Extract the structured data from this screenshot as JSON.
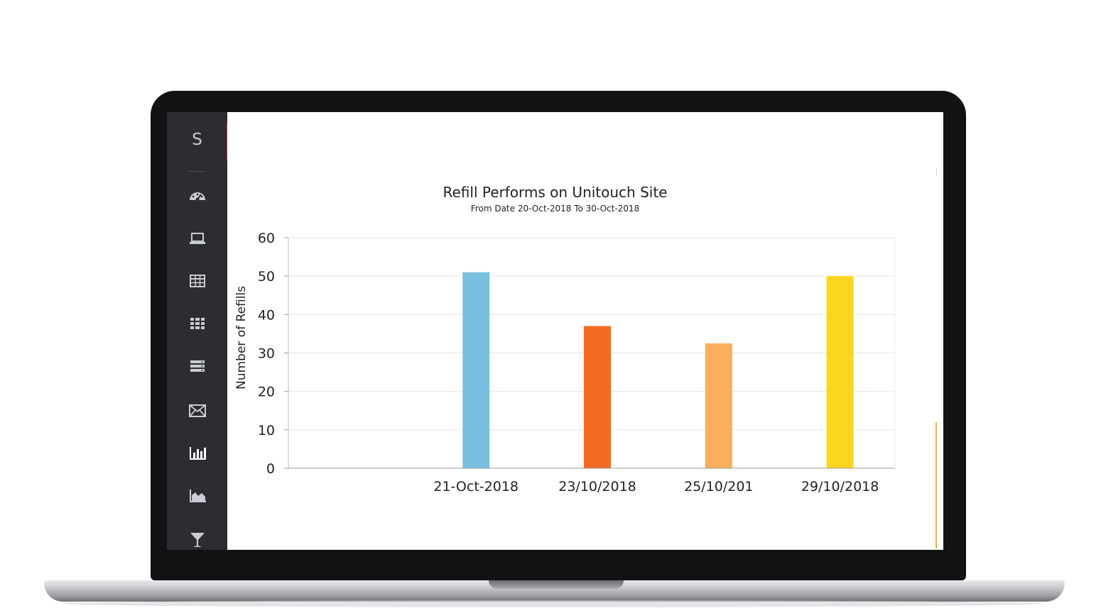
{
  "sidebar": {
    "brand": "S",
    "items": [
      {
        "icon": "dashboard-gauge-icon"
      },
      {
        "icon": "laptop-icon"
      },
      {
        "icon": "table-icon"
      },
      {
        "icon": "grid-icon"
      },
      {
        "icon": "list-rows-icon"
      },
      {
        "icon": "envelope-icon"
      },
      {
        "icon": "bar-chart-icon",
        "active": true
      },
      {
        "icon": "area-chart-icon"
      },
      {
        "icon": "cocktail-glass-icon"
      }
    ]
  },
  "chart_data": {
    "type": "bar",
    "title": "Refill Performs on Unitouch Site",
    "subtitle": "From Date 20-Oct-2018 To 30-Oct-2018",
    "ylabel": "Number of Refills",
    "xlabel": "",
    "ylim": [
      0,
      60
    ],
    "yticks": [
      0,
      10,
      20,
      30,
      40,
      50,
      60
    ],
    "grid": true,
    "categories": [
      "",
      "21-Oct-2018",
      "23/10/2018",
      "25/10/201",
      "29/10/2018"
    ],
    "values": [
      0,
      51,
      37,
      32.5,
      50
    ],
    "colors": [
      "#7bbfe0",
      "#7bbfe0",
      "#f26b21",
      "#fbae5c",
      "#fcd61e"
    ]
  }
}
